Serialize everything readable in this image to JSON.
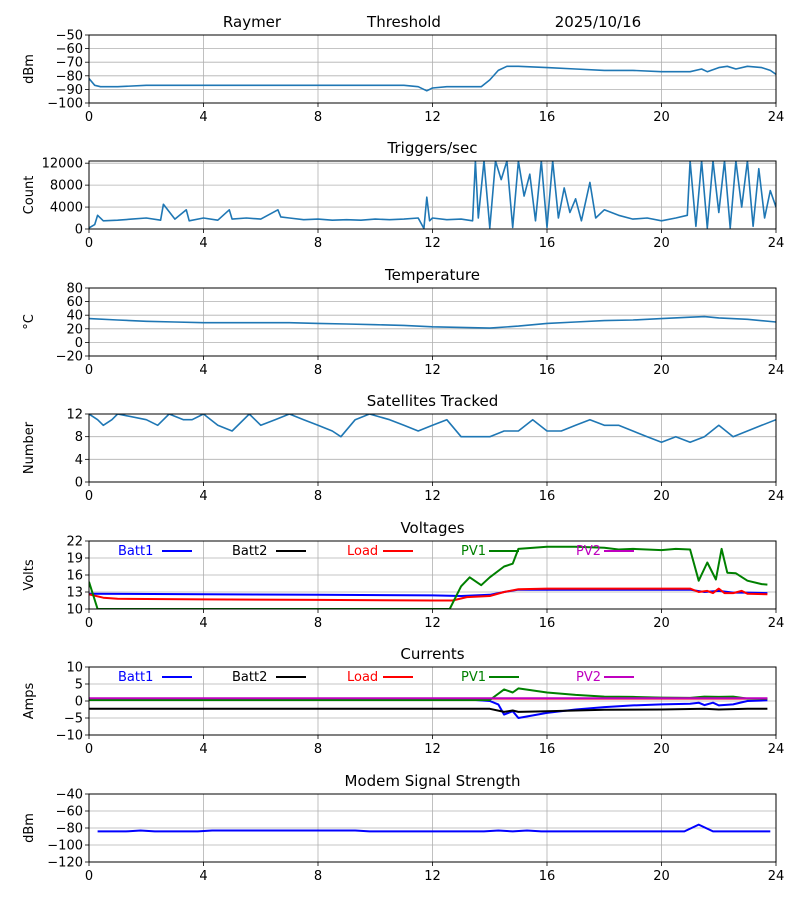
{
  "header": {
    "station": "Raymer",
    "mode": "Threshold",
    "date": "2025/10/16"
  },
  "chart_data": [
    {
      "id": "signal",
      "type": "line",
      "title": "",
      "ylabel": "dBm",
      "xlabel": "",
      "xlim": [
        0,
        24
      ],
      "ylim": [
        -100,
        -50
      ],
      "xticks": [
        0,
        4,
        8,
        12,
        16,
        20,
        24
      ],
      "yticks": [
        -100,
        -90,
        -80,
        -70,
        -60,
        -50
      ],
      "ytick_labels": [
        "−100",
        "−90",
        "−80",
        "−70",
        "−60",
        "−50"
      ],
      "grid": true,
      "series": [
        {
          "name": "signal",
          "color": "#1f77b4",
          "x": [
            0,
            0.2,
            0.4,
            1,
            2,
            3,
            4,
            5,
            6,
            7,
            8,
            9,
            10,
            11,
            11.5,
            11.8,
            12,
            12.5,
            13,
            13.7,
            14,
            14.3,
            14.6,
            15,
            16,
            17,
            18,
            19,
            20,
            21,
            21.4,
            21.6,
            22,
            22.3,
            22.6,
            23,
            23.5,
            23.8,
            24
          ],
          "y": [
            -82,
            -87,
            -88,
            -88,
            -87,
            -87,
            -87,
            -87,
            -87,
            -87,
            -87,
            -87,
            -87,
            -87,
            -88,
            -91,
            -89,
            -88,
            -88,
            -88,
            -83,
            -76,
            -73,
            -73,
            -74,
            -75,
            -76,
            -76,
            -77,
            -77,
            -75,
            -77,
            -74,
            -73,
            -75,
            -73,
            -74,
            -76,
            -79
          ]
        }
      ]
    },
    {
      "id": "triggers",
      "type": "line",
      "title": "Triggers/sec",
      "ylabel": "Count",
      "xlabel": "",
      "xlim": [
        0,
        24
      ],
      "ylim": [
        0,
        12400
      ],
      "xticks": [
        0,
        4,
        8,
        12,
        16,
        20,
        24
      ],
      "yticks": [
        0,
        4000,
        8000,
        12000
      ],
      "ytick_labels": [
        "0",
        "4000",
        "8000",
        "12000"
      ],
      "grid": true,
      "series": [
        {
          "name": "triggers",
          "color": "#1f77b4",
          "x": [
            0,
            0.2,
            0.3,
            0.5,
            1,
            1.5,
            2,
            2.5,
            2.6,
            3,
            3.4,
            3.5,
            4,
            4.5,
            4.9,
            5,
            5.5,
            6,
            6.6,
            6.7,
            7,
            7.5,
            8,
            8.5,
            9,
            9.5,
            10,
            10.5,
            11,
            11.5,
            11.7,
            11.8,
            11.9,
            12,
            12.5,
            13,
            13.4,
            13.5,
            13.6,
            13.8,
            14.0,
            14.2,
            14.4,
            14.6,
            14.8,
            15.0,
            15.2,
            15.4,
            15.6,
            15.8,
            16.0,
            16.2,
            16.4,
            16.6,
            16.8,
            17.0,
            17.2,
            17.5,
            17.7,
            18,
            18.5,
            19,
            19.5,
            20,
            20.5,
            20.9,
            21.0,
            21.2,
            21.4,
            21.6,
            21.8,
            22.0,
            22.2,
            22.4,
            22.6,
            22.8,
            23.0,
            23.2,
            23.4,
            23.6,
            23.8,
            24
          ],
          "y": [
            200,
            800,
            2500,
            1500,
            1600,
            1800,
            2000,
            1600,
            4500,
            1800,
            3500,
            1500,
            2000,
            1600,
            3500,
            1800,
            2000,
            1800,
            3500,
            2200,
            2000,
            1700,
            1800,
            1600,
            1700,
            1600,
            1800,
            1700,
            1800,
            2000,
            100,
            5800,
            1500,
            2000,
            1700,
            1800,
            1500,
            12400,
            2000,
            12400,
            200,
            12400,
            9000,
            12400,
            300,
            12400,
            6000,
            10000,
            1500,
            12400,
            300,
            12400,
            2000,
            7500,
            3000,
            5500,
            1500,
            8500,
            2000,
            3500,
            2500,
            1800,
            2000,
            1500,
            2000,
            2500,
            12400,
            500,
            12400,
            200,
            12400,
            3000,
            12400,
            200,
            12400,
            4000,
            12400,
            500,
            11000,
            2000,
            7000,
            4000
          ]
        }
      ]
    },
    {
      "id": "temperature",
      "type": "line",
      "title": "Temperature",
      "ylabel": "°C",
      "xlabel": "",
      "xlim": [
        0,
        24
      ],
      "ylim": [
        -20,
        80
      ],
      "xticks": [
        0,
        4,
        8,
        12,
        16,
        20,
        24
      ],
      "yticks": [
        -20,
        0,
        20,
        40,
        60,
        80
      ],
      "ytick_labels": [
        "−20",
        "0",
        "20",
        "40",
        "60",
        "80"
      ],
      "grid": true,
      "series": [
        {
          "name": "temperature",
          "color": "#1f77b4",
          "x": [
            0,
            1,
            2,
            3,
            4,
            5,
            6,
            7,
            8,
            9,
            10,
            11,
            12,
            13,
            14,
            15,
            16,
            17,
            18,
            19,
            20,
            21,
            21.5,
            22,
            23,
            24
          ],
          "y": [
            35,
            33,
            31,
            30,
            29,
            29,
            29,
            29,
            28,
            27,
            26,
            25,
            23,
            22,
            21,
            24,
            28,
            30,
            32,
            33,
            35,
            37,
            38,
            36,
            34,
            30
          ]
        }
      ]
    },
    {
      "id": "satellites",
      "type": "line",
      "title": "Satellites Tracked",
      "ylabel": "Number",
      "xlabel": "",
      "xlim": [
        0,
        24
      ],
      "ylim": [
        0,
        12
      ],
      "xticks": [
        0,
        4,
        8,
        12,
        16,
        20,
        24
      ],
      "yticks": [
        0,
        4,
        8,
        12
      ],
      "ytick_labels": [
        "0",
        "4",
        "8",
        "12"
      ],
      "grid": true,
      "series": [
        {
          "name": "satellites",
          "color": "#1f77b4",
          "x": [
            0,
            0.3,
            0.5,
            0.8,
            1.0,
            2.0,
            2.4,
            2.8,
            3.3,
            3.6,
            4.0,
            4.5,
            5.0,
            5.6,
            6.0,
            6.5,
            7.0,
            7.5,
            8.0,
            8.5,
            8.8,
            9.3,
            9.8,
            10.5,
            11.0,
            11.5,
            12.0,
            12.5,
            13.0,
            14.0,
            14.5,
            15.0,
            15.5,
            16.0,
            16.5,
            17.0,
            17.5,
            18.0,
            18.5,
            19.0,
            19.5,
            20.0,
            20.5,
            21.0,
            21.5,
            22.0,
            22.5,
            23.0,
            23.5,
            24.0
          ],
          "y": [
            12,
            11,
            10,
            11,
            12,
            11,
            10,
            12,
            11,
            11,
            12,
            10,
            9,
            12,
            10,
            11,
            12,
            11,
            10,
            9,
            8,
            11,
            12,
            11,
            10,
            9,
            10,
            11,
            8,
            8,
            9,
            9,
            11,
            9,
            9,
            10,
            11,
            10,
            10,
            9,
            8,
            7,
            8,
            7,
            8,
            10,
            8,
            9,
            10,
            11
          ]
        }
      ]
    },
    {
      "id": "voltages",
      "type": "line",
      "title": "Voltages",
      "ylabel": "Volts",
      "xlabel": "",
      "xlim": [
        0,
        24
      ],
      "ylim": [
        10,
        22
      ],
      "xticks": [
        0,
        4,
        8,
        12,
        16,
        20,
        24
      ],
      "yticks": [
        10,
        13,
        16,
        19,
        22
      ],
      "ytick_labels": [
        "10",
        "13",
        "16",
        "19",
        "22"
      ],
      "grid": true,
      "legend": "top inline",
      "series": [
        {
          "name": "Batt1",
          "color": "#0000ff",
          "x": [
            0,
            4,
            8,
            12,
            13,
            14,
            14.5,
            15,
            16,
            18,
            20,
            21,
            21.5,
            22,
            22.5,
            23,
            23.7
          ],
          "y": [
            12.7,
            12.6,
            12.5,
            12.4,
            12.3,
            12.5,
            13.0,
            13.4,
            13.4,
            13.4,
            13.4,
            13.4,
            13.0,
            13.2,
            12.9,
            12.9,
            12.8
          ]
        },
        {
          "name": "Batt2",
          "color": "#000000",
          "x": [],
          "y": []
        },
        {
          "name": "Load",
          "color": "#ff0000",
          "x": [
            0,
            0.5,
            1,
            4,
            8,
            12,
            12.7,
            13.2,
            14,
            14.5,
            15,
            16,
            18,
            20,
            21,
            21.3,
            21.6,
            21.8,
            22,
            22.2,
            22.5,
            22.8,
            23,
            23.7
          ],
          "y": [
            12.6,
            12.0,
            11.8,
            11.7,
            11.6,
            11.5,
            11.5,
            12.1,
            12.3,
            13.0,
            13.5,
            13.6,
            13.6,
            13.6,
            13.6,
            13.0,
            13.2,
            12.8,
            13.6,
            12.8,
            12.8,
            13.2,
            12.7,
            12.6
          ]
        },
        {
          "name": "PV1",
          "color": "#008000",
          "x": [
            0,
            0.3,
            12.6,
            13.0,
            13.3,
            13.7,
            14.0,
            14.5,
            14.8,
            15.0,
            16.0,
            17.0,
            18.0,
            18.5,
            19.0,
            20.0,
            20.5,
            21.0,
            21.3,
            21.6,
            21.9,
            22.1,
            22.3,
            22.6,
            23.0,
            23.5,
            23.7
          ],
          "y": [
            14.8,
            10.0,
            10.0,
            14.0,
            15.6,
            14.2,
            15.6,
            17.5,
            18.0,
            20.6,
            21.0,
            21.0,
            20.8,
            20.5,
            20.6,
            20.4,
            20.6,
            20.5,
            15.0,
            18.2,
            15.2,
            20.6,
            16.4,
            16.3,
            15.0,
            14.4,
            14.3
          ]
        },
        {
          "name": "PV2",
          "color": "#bf00bf",
          "x": [],
          "y": []
        }
      ]
    },
    {
      "id": "currents",
      "type": "line",
      "title": "Currents",
      "ylabel": "Amps",
      "xlabel": "",
      "xlim": [
        0,
        24
      ],
      "ylim": [
        -10,
        10
      ],
      "xticks": [
        0,
        4,
        8,
        12,
        16,
        20,
        24
      ],
      "yticks": [
        -10,
        -5,
        0,
        5,
        10
      ],
      "ytick_labels": [
        "−10",
        "−5",
        "0",
        "5",
        "10"
      ],
      "grid": true,
      "legend": "top inline",
      "series": [
        {
          "name": "Batt1",
          "color": "#0000ff",
          "x": [
            0,
            12,
            13.5,
            14.0,
            14.3,
            14.5,
            14.8,
            15.0,
            16.0,
            17.0,
            18.0,
            19.0,
            20.0,
            21.0,
            21.3,
            21.5,
            21.8,
            22.0,
            22.5,
            23.0,
            23.7
          ],
          "y": [
            0.3,
            0.3,
            0.3,
            0.0,
            -1.0,
            -4.0,
            -3.0,
            -5.0,
            -3.5,
            -2.5,
            -1.8,
            -1.3,
            -1.0,
            -0.8,
            -0.5,
            -1.2,
            -0.5,
            -1.3,
            -1.0,
            0.0,
            0.2
          ]
        },
        {
          "name": "Batt2",
          "color": "#000000",
          "x": [
            0,
            14.0,
            14.5,
            14.8,
            15.0,
            16,
            18,
            20,
            21.5,
            22,
            23,
            23.7
          ],
          "y": [
            -2.3,
            -2.3,
            -3.2,
            -2.8,
            -3.2,
            -3.0,
            -2.6,
            -2.5,
            -2.3,
            -2.5,
            -2.3,
            -2.3
          ]
        },
        {
          "name": "Load",
          "color": "#ff0000",
          "x": [
            0,
            23.7
          ],
          "y": [
            0.7,
            0.7
          ]
        },
        {
          "name": "PV1",
          "color": "#008000",
          "x": [
            0,
            14.0,
            14.5,
            14.8,
            15.0,
            16,
            17,
            18,
            19,
            20,
            21,
            21.5,
            22,
            22.5,
            23,
            23.7
          ],
          "y": [
            0.3,
            0.3,
            3.4,
            2.5,
            3.7,
            2.5,
            1.8,
            1.3,
            1.2,
            1.0,
            0.9,
            1.3,
            1.2,
            1.3,
            0.7,
            0.7
          ]
        },
        {
          "name": "PV2",
          "color": "#bf00bf",
          "x": [
            0,
            23.7
          ],
          "y": [
            0.8,
            0.8
          ]
        }
      ]
    },
    {
      "id": "modem",
      "type": "line",
      "title": "Modem Signal Strength",
      "ylabel": "dBm",
      "xlabel": "",
      "xlim": [
        0,
        24
      ],
      "ylim": [
        -120,
        -40
      ],
      "xticks": [
        0,
        4,
        8,
        12,
        16,
        20,
        24
      ],
      "yticks": [
        -120,
        -100,
        -80,
        -60,
        -40
      ],
      "ytick_labels": [
        "−120",
        "−100",
        "−80",
        "−60",
        "−40"
      ],
      "grid": true,
      "series": [
        {
          "name": "modem",
          "color": "#0000ff",
          "x": [
            0.3,
            1.3,
            1.8,
            2.3,
            3.8,
            4.3,
            9.3,
            9.8,
            13.8,
            14.3,
            14.8,
            15.3,
            15.8,
            20.8,
            21.3,
            21.8,
            23.8
          ],
          "y": [
            -84,
            -84,
            -83,
            -84,
            -84,
            -83,
            -83,
            -84,
            -84,
            -83,
            -84,
            -83,
            -84,
            -84,
            -76,
            -84,
            -84
          ]
        }
      ]
    }
  ]
}
